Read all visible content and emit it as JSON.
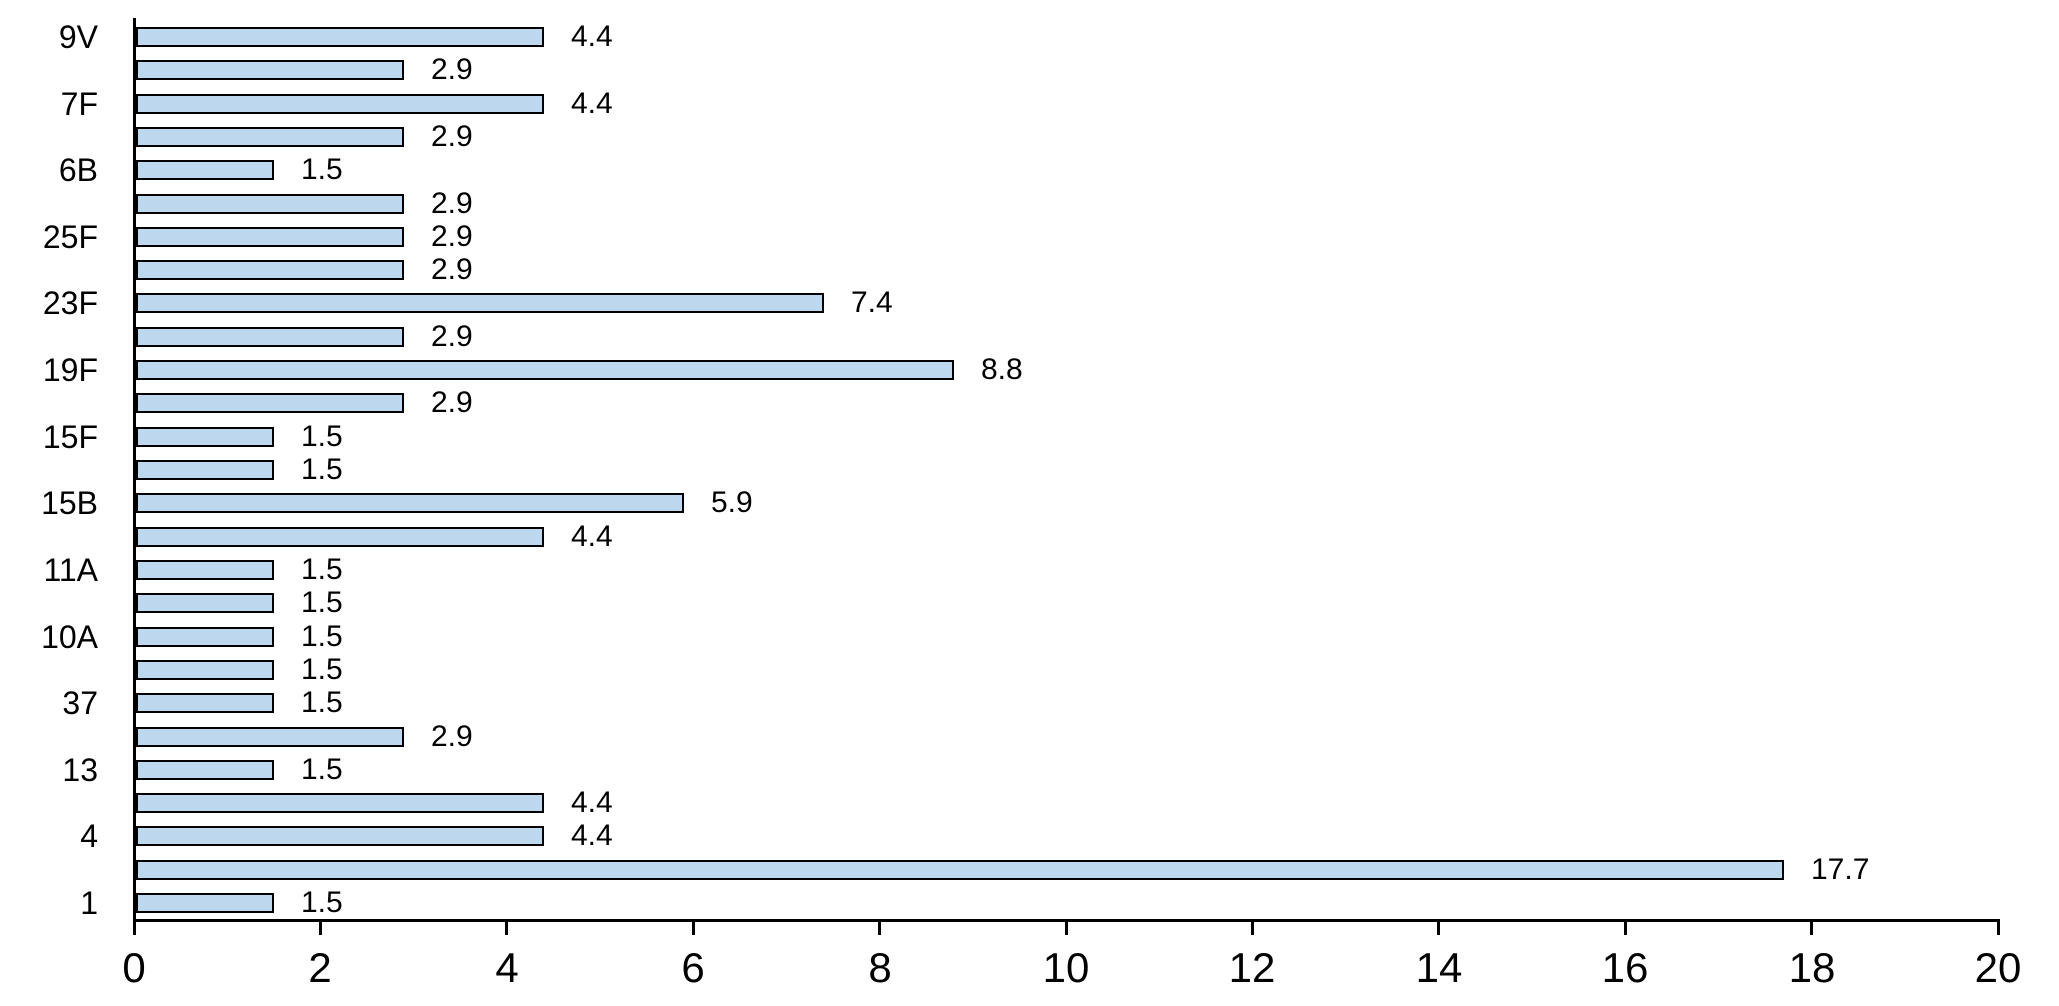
{
  "chart_data": {
    "type": "bar",
    "orientation": "horizontal",
    "title": "",
    "xlabel": "",
    "ylabel": "",
    "xlim": [
      0,
      20
    ],
    "x_ticks": [
      0,
      2,
      4,
      6,
      8,
      10,
      12,
      14,
      16,
      18,
      20
    ],
    "grid": false,
    "legend": false,
    "value_label_decimals": 1,
    "colors": {
      "bar_fill": "#BDD7EE",
      "bar_border": "#000000",
      "axis": "#000000",
      "text": "#000000",
      "background": "#FFFFFF"
    },
    "bars": [
      {
        "label": "9V",
        "value": 4.4
      },
      {
        "label": "",
        "value": 2.9
      },
      {
        "label": "7F",
        "value": 4.4
      },
      {
        "label": "",
        "value": 2.9
      },
      {
        "label": "6B",
        "value": 1.5
      },
      {
        "label": "",
        "value": 2.9
      },
      {
        "label": "25F",
        "value": 2.9
      },
      {
        "label": "",
        "value": 2.9
      },
      {
        "label": "23F",
        "value": 7.4
      },
      {
        "label": "",
        "value": 2.9
      },
      {
        "label": "19F",
        "value": 8.8
      },
      {
        "label": "",
        "value": 2.9
      },
      {
        "label": "15F",
        "value": 1.5
      },
      {
        "label": "",
        "value": 1.5
      },
      {
        "label": "15B",
        "value": 5.9
      },
      {
        "label": "",
        "value": 4.4
      },
      {
        "label": "11A",
        "value": 1.5
      },
      {
        "label": "",
        "value": 1.5
      },
      {
        "label": "10A",
        "value": 1.5
      },
      {
        "label": "",
        "value": 1.5
      },
      {
        "label": "37",
        "value": 1.5
      },
      {
        "label": "",
        "value": 2.9
      },
      {
        "label": "13",
        "value": 1.5
      },
      {
        "label": "",
        "value": 4.4
      },
      {
        "label": "4",
        "value": 4.4
      },
      {
        "label": "",
        "value": 17.7
      },
      {
        "label": "1",
        "value": 1.5
      }
    ]
  }
}
